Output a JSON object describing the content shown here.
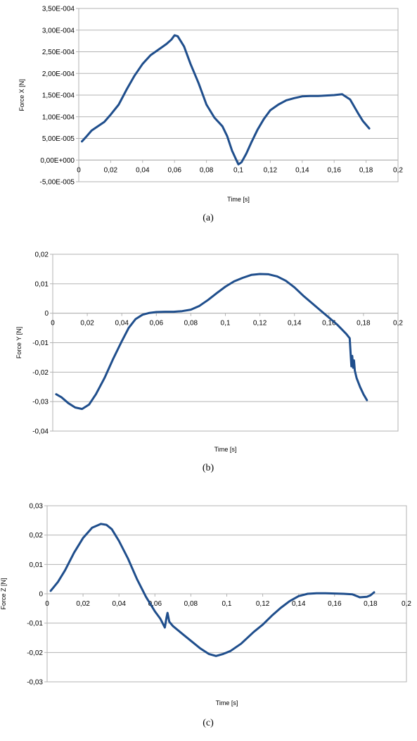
{
  "chart_data": [
    {
      "type": "line",
      "caption": "(a)",
      "xlabel": "Time [s]",
      "ylabel": "Force X [N]",
      "xlim": [
        0,
        0.2
      ],
      "ylim": [
        -5e-05,
        0.00035
      ],
      "xticks": [
        0,
        0.02,
        0.04,
        0.06,
        0.08,
        0.1,
        0.12,
        0.14,
        0.16,
        0.18,
        0.2
      ],
      "xtick_labels": [
        "0",
        "0,02",
        "0,04",
        "0,06",
        "0,08",
        "0,1",
        "0,12",
        "0,14",
        "0,16",
        "0,18",
        "0,2"
      ],
      "yticks": [
        -5e-05,
        0,
        5e-05,
        0.0001,
        0.00015,
        0.0002,
        0.00025,
        0.0003,
        0.00035
      ],
      "ytick_labels": [
        "-5,00E-005",
        "0,00E+000",
        "5,00E-005",
        "1,00E-004",
        "1,50E-004",
        "2,00E-004",
        "2,50E-004",
        "3,00E-004",
        "3,50E-004"
      ],
      "grid": "horizontal",
      "line_color": "#1f4e8c",
      "series": [
        {
          "x": [
            0.002,
            0.005,
            0.008,
            0.012,
            0.016,
            0.02,
            0.025,
            0.03,
            0.035,
            0.04,
            0.045,
            0.05,
            0.055,
            0.058,
            0.06,
            0.062,
            0.066,
            0.07,
            0.075,
            0.08,
            0.085,
            0.09,
            0.093,
            0.096,
            0.099,
            0.1,
            0.102,
            0.105,
            0.108,
            0.112,
            0.116,
            0.12,
            0.125,
            0.13,
            0.135,
            0.14,
            0.145,
            0.15,
            0.155,
            0.16,
            0.165,
            0.17,
            0.175,
            0.178,
            0.182
          ],
          "y": [
            4.3e-05,
            5.5e-05,
            6.8e-05,
            7.8e-05,
            8.8e-05,
            0.000105,
            0.000128,
            0.000163,
            0.000195,
            0.000222,
            0.000242,
            0.000255,
            0.000268,
            0.000278,
            0.000288,
            0.000286,
            0.000262,
            0.000222,
            0.000178,
            0.000128,
            9.8e-05,
            7.8e-05,
            5.5e-05,
            2.2e-05,
            -2e-06,
            -1e-05,
            -5e-06,
            1.5e-05,
            4e-05,
            7e-05,
            9.5e-05,
            0.000115,
            0.000128,
            0.000138,
            0.000143,
            0.000147,
            0.000148,
            0.000148,
            0.000149,
            0.00015,
            0.000152,
            0.00014,
            0.000108,
            9e-05,
            7.3e-05
          ]
        }
      ]
    },
    {
      "type": "line",
      "caption": "(b)",
      "xlabel": "Time [s]",
      "ylabel": "Force Y [N]",
      "xlim": [
        0,
        0.2
      ],
      "ylim": [
        -0.04,
        0.02
      ],
      "xticks": [
        0,
        0.02,
        0.04,
        0.06,
        0.08,
        0.1,
        0.12,
        0.14,
        0.16,
        0.18,
        0.2
      ],
      "xtick_labels": [
        "0",
        "0,02",
        "0,04",
        "0,06",
        "0,08",
        "0,1",
        "0,12",
        "0,14",
        "0,16",
        "0,18",
        "0,2"
      ],
      "yticks": [
        -0.04,
        -0.03,
        -0.02,
        -0.01,
        0,
        0.01,
        0.02
      ],
      "ytick_labels": [
        "-0,04",
        "-0,03",
        "-0,02",
        "-0,01",
        "0",
        "0,01",
        "0,02"
      ],
      "grid": "horizontal",
      "line_color": "#1f4e8c",
      "series": [
        {
          "x": [
            0.002,
            0.005,
            0.009,
            0.013,
            0.017,
            0.021,
            0.025,
            0.03,
            0.035,
            0.04,
            0.044,
            0.048,
            0.052,
            0.056,
            0.06,
            0.065,
            0.07,
            0.075,
            0.08,
            0.085,
            0.09,
            0.095,
            0.1,
            0.105,
            0.11,
            0.115,
            0.12,
            0.125,
            0.13,
            0.135,
            0.14,
            0.145,
            0.15,
            0.155,
            0.16,
            0.165,
            0.17,
            0.172,
            0.173,
            0.1735,
            0.174,
            0.1745,
            0.175,
            0.176,
            0.178,
            0.18,
            0.182
          ],
          "y": [
            -0.0275,
            -0.0285,
            -0.0305,
            -0.032,
            -0.0325,
            -0.031,
            -0.0275,
            -0.022,
            -0.0155,
            -0.0095,
            -0.005,
            -0.002,
            -0.0005,
            0.0001,
            0.0004,
            0.0005,
            0.0005,
            0.0007,
            0.0012,
            0.0025,
            0.0045,
            0.0068,
            0.009,
            0.0108,
            0.012,
            0.013,
            0.0133,
            0.0132,
            0.0125,
            0.011,
            0.0088,
            0.006,
            0.0035,
            0.001,
            -0.0015,
            -0.004,
            -0.007,
            -0.0085,
            -0.018,
            -0.0145,
            -0.0185,
            -0.016,
            -0.0195,
            -0.022,
            -0.025,
            -0.0275,
            -0.0295
          ]
        }
      ]
    },
    {
      "type": "line",
      "caption": "(c)",
      "xlabel": "Time [s]",
      "ylabel": "Force Z [N]",
      "xlim": [
        0,
        0.2
      ],
      "ylim": [
        -0.03,
        0.03
      ],
      "xticks": [
        0,
        0.02,
        0.04,
        0.06,
        0.08,
        0.1,
        0.12,
        0.14,
        0.16,
        0.18,
        0.2
      ],
      "xtick_labels": [
        "0",
        "0,02",
        "0,04",
        "0,06",
        "0,08",
        "0,1",
        "0,12",
        "0,14",
        "0,16",
        "0,18",
        "0,2"
      ],
      "yticks": [
        -0.03,
        -0.02,
        -0.01,
        0,
        0.01,
        0.02,
        0.03
      ],
      "ytick_labels": [
        "-0,03",
        "-0,02",
        "-0,01",
        "0",
        "0,01",
        "0,02",
        "0,03"
      ],
      "grid": "horizontal",
      "line_color": "#1f4e8c",
      "series": [
        {
          "x": [
            0.002,
            0.006,
            0.01,
            0.015,
            0.02,
            0.025,
            0.03,
            0.033,
            0.036,
            0.04,
            0.045,
            0.05,
            0.055,
            0.06,
            0.063,
            0.0655,
            0.0665,
            0.067,
            0.068,
            0.07,
            0.075,
            0.08,
            0.085,
            0.09,
            0.094,
            0.098,
            0.102,
            0.108,
            0.115,
            0.12,
            0.125,
            0.13,
            0.135,
            0.14,
            0.145,
            0.15,
            0.155,
            0.16,
            0.165,
            0.17,
            0.174,
            0.178,
            0.18,
            0.182
          ],
          "y": [
            0.001,
            0.004,
            0.008,
            0.014,
            0.019,
            0.0225,
            0.0238,
            0.0235,
            0.022,
            0.018,
            0.012,
            0.005,
            -0.001,
            -0.006,
            -0.0085,
            -0.0115,
            -0.008,
            -0.0065,
            -0.0095,
            -0.011,
            -0.0135,
            -0.016,
            -0.0185,
            -0.0205,
            -0.0212,
            -0.0205,
            -0.0195,
            -0.017,
            -0.013,
            -0.0105,
            -0.0075,
            -0.0048,
            -0.0025,
            -0.0008,
            0.0,
            0.0002,
            0.0002,
            0.0001,
            0.0,
            -0.0002,
            -0.0012,
            -0.001,
            -0.0005,
            0.0005
          ]
        }
      ]
    }
  ]
}
